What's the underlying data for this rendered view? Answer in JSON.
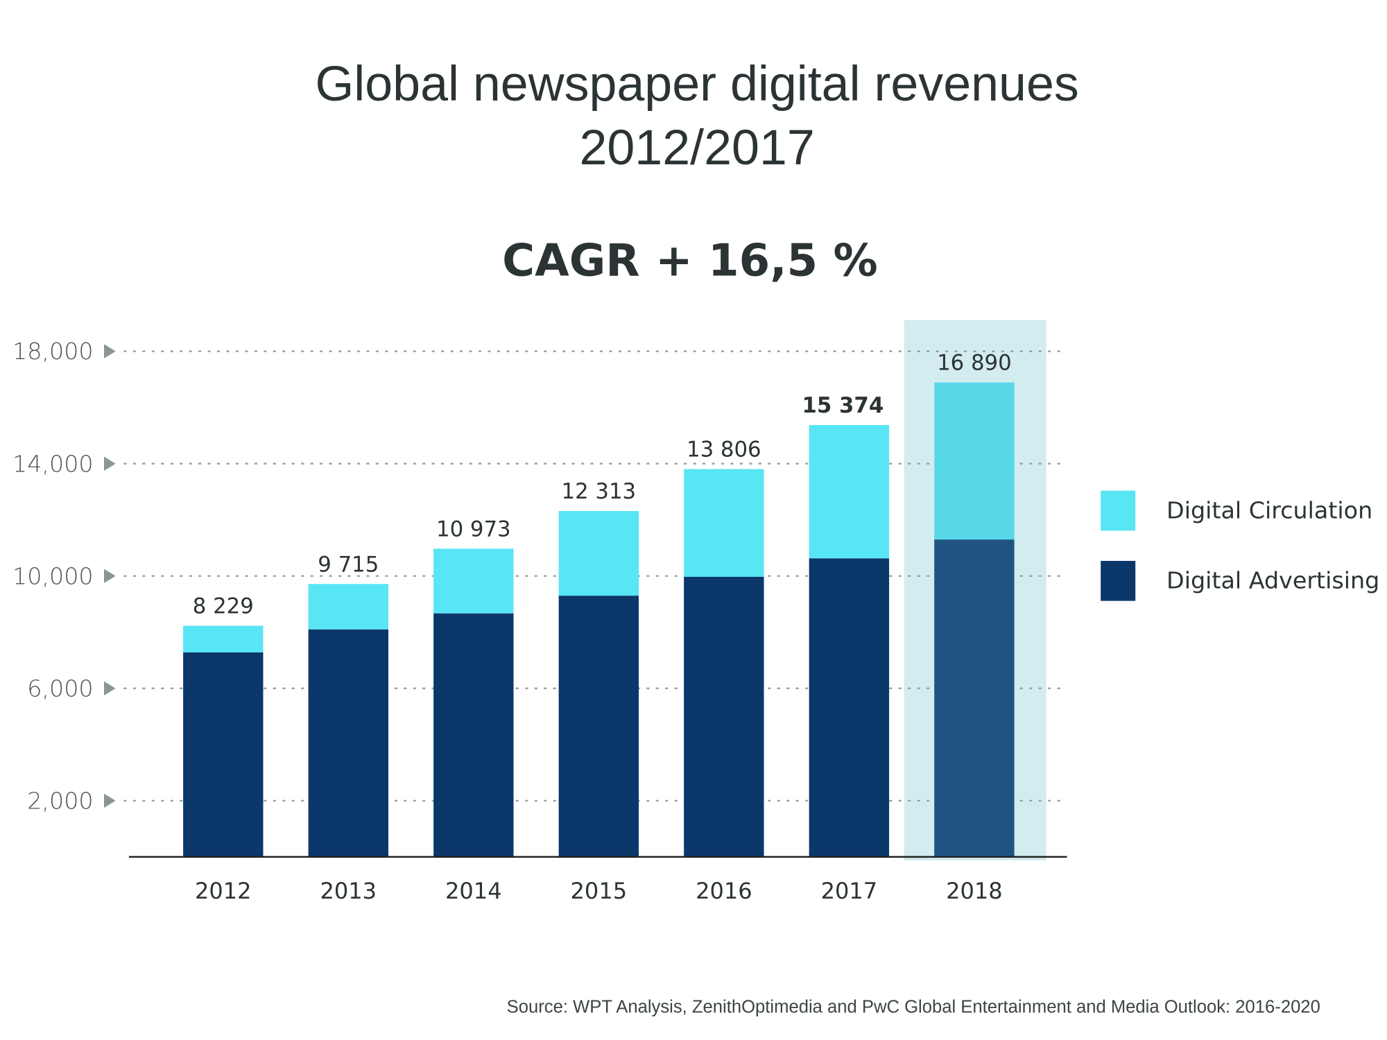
{
  "chart_data": {
    "type": "bar",
    "stacked": true,
    "title": "Global newspaper digital revenues",
    "title_line2": "2012/2017",
    "subtitle": "CAGR + 16,5 %",
    "xlabel": "",
    "ylabel": "",
    "categories": [
      "2012",
      "2013",
      "2014",
      "2015",
      "2016",
      "2017",
      "2018"
    ],
    "series": [
      {
        "name": "Digital Advertising",
        "values": [
          7280,
          8100,
          8670,
          9300,
          9970,
          10630,
          11300
        ],
        "color": "#0b376b",
        "highlight_color": "#1f5482"
      },
      {
        "name": "Digital Circulation",
        "values": [
          949,
          1615,
          2303,
          3013,
          3836,
          4744,
          5590
        ],
        "color": "#58e5f4",
        "highlight_color": "#57d9ea"
      }
    ],
    "total_labels": [
      "8 229",
      "9 715",
      "10 973",
      "12 313",
      "13 806",
      "15 374",
      "16 890"
    ],
    "bold_label_index": 5,
    "highlighted_category": "2018",
    "highlight_band_color": "#d3ecef",
    "yticks": [
      2000,
      6000,
      10000,
      14000,
      18000
    ],
    "ytick_labels": [
      "2,000",
      "6,000",
      "10,000",
      "14,000",
      "18,000"
    ],
    "ylim": [
      0,
      19000
    ],
    "grid": "dotted horizontal",
    "legend_position": "right",
    "legend": [
      "Digital Circulation",
      "Digital Advertising"
    ],
    "source": "Source: WPT Analysis, ZenithOptimedia and PwC Global Entertainment and Media Outlook: 2016-2020"
  }
}
